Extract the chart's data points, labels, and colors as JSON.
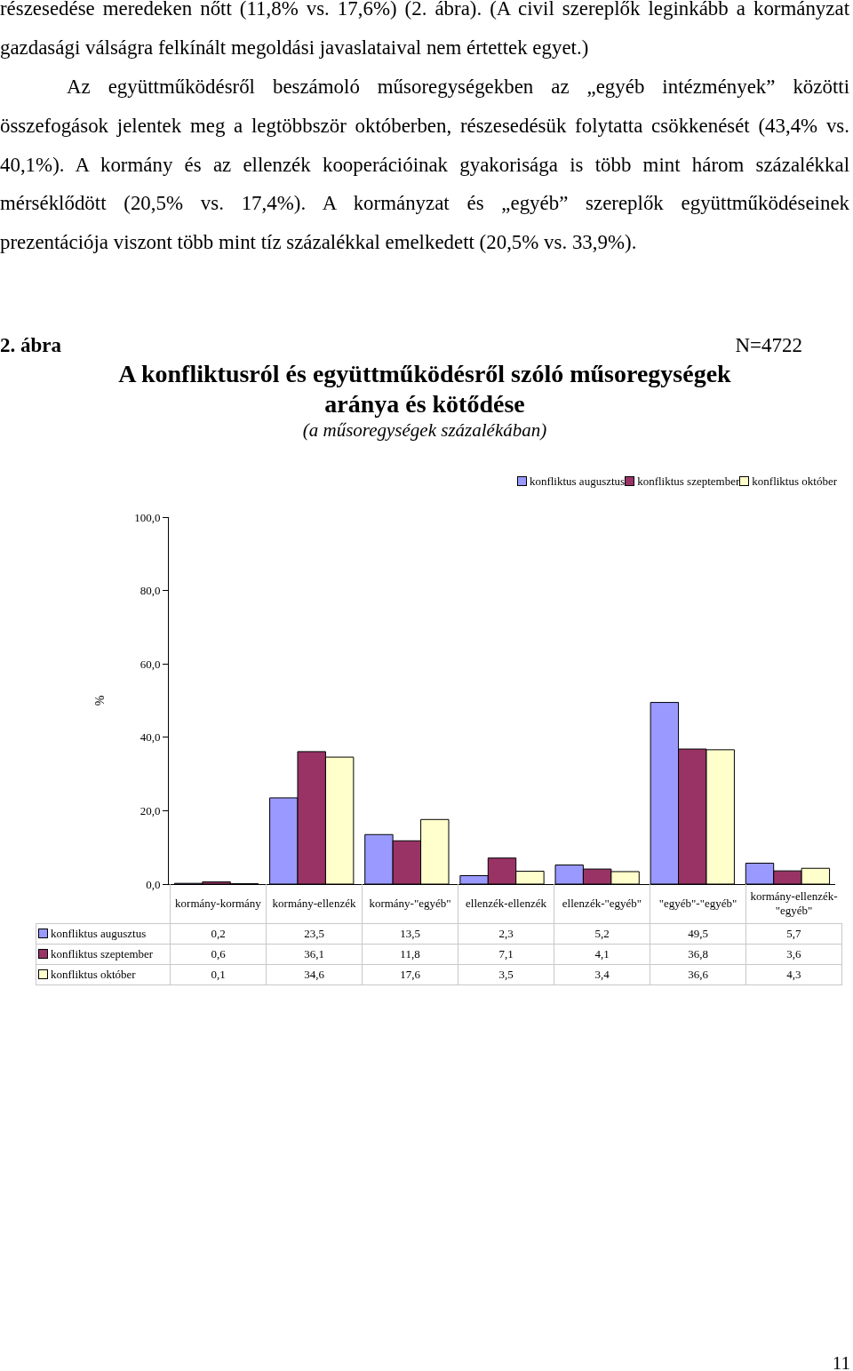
{
  "chart_data": {
    "type": "bar",
    "title": "A konfliktusról és együttműködésről szóló műsoregységek aránya és kötődése",
    "subtitle": "(a műsoregységek százalékában)",
    "ylabel": "%",
    "annotations": [
      "részesedése meredeken nőtt (11,8% vs. 17,6%) (2. ábra). (A civil szereplők leginkább a kormányzat gazdasági válságra felkínált megoldási javaslataival nem értettek egyet.)",
      "Az együttműködésről beszámoló műsoregységekben az „egyéb intézmények” közötti összefogások jelentek meg a legtöbbször októberben, részesedésük folytatta csökkenését (43,4% vs. 40,1%). A kormány és az ellenzék kooperációinak gyakorisága is több mint három százalékkal mérséklődött (20,5% vs. 17,4%). A kormányzat és „egyéb” szereplők együttműködéseinek prezentációja viszont több mint tíz százalékkal emelkedett (20,5% vs. 33,9%).",
      "2. ábra",
      "N=4722",
      "11"
    ],
    "categories": [
      "kormány-kormány",
      "kormány-ellenzék",
      "kormány-\"egyéb\"",
      "ellenzék-ellenzék",
      "ellenzék-\"egyéb\"",
      "\"egyéb\"-\"egyéb\"",
      "kormány-ellenzék-\"egyéb\""
    ],
    "series": [
      {
        "name": "konfliktus augusztus",
        "color": "#9999ff",
        "values": [
          0.2,
          23.5,
          13.5,
          2.3,
          5.2,
          49.5,
          5.7
        ],
        "value_labels": [
          "0,2",
          "23,5",
          "13,5",
          "2,3",
          "5,2",
          "49,5",
          "5,7"
        ]
      },
      {
        "name": "konfliktus szeptember",
        "color": "#993366",
        "values": [
          0.6,
          36.1,
          11.8,
          7.1,
          4.1,
          36.8,
          3.6
        ],
        "value_labels": [
          "0,6",
          "36,1",
          "11,8",
          "7,1",
          "4,1",
          "36,8",
          "3,6"
        ]
      },
      {
        "name": "konfliktus október",
        "color": "#ffffcc",
        "values": [
          0.1,
          34.6,
          17.6,
          3.5,
          3.4,
          36.6,
          4.3
        ],
        "value_labels": [
          "0,1",
          "34,6",
          "17,6",
          "3,5",
          "3,4",
          "36,6",
          "4,3"
        ]
      }
    ],
    "ylim": [
      0,
      100
    ],
    "yticks": [
      {
        "value": 0,
        "label": "0,0"
      },
      {
        "value": 20,
        "label": "20,0"
      },
      {
        "value": 40,
        "label": "40,0"
      },
      {
        "value": 60,
        "label": "60,0"
      },
      {
        "value": 80,
        "label": "80,0"
      },
      {
        "value": 100,
        "label": "100,0"
      }
    ],
    "grid": false,
    "legend": "top right",
    "tick_labels": "y"
  }
}
